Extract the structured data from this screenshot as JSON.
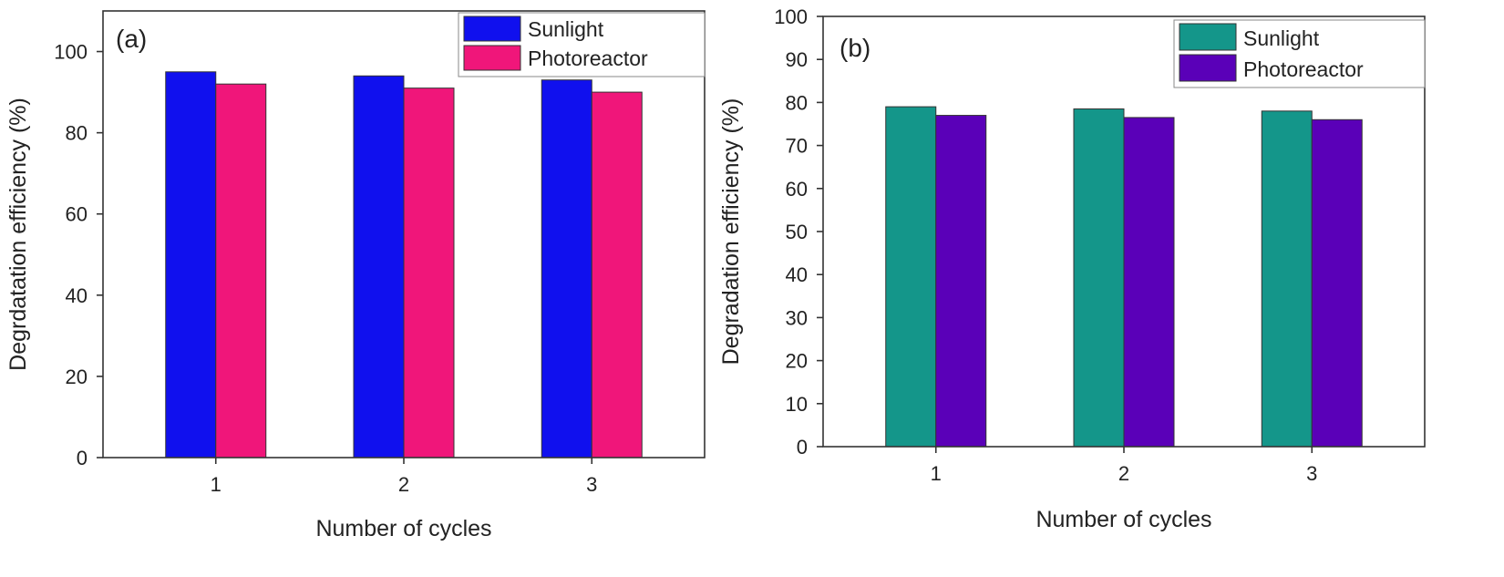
{
  "chart_data": [
    {
      "type": "bar",
      "panel_label": "(a)",
      "categories": [
        "1",
        "2",
        "3"
      ],
      "series": [
        {
          "name": "Sunlight",
          "values": [
            95,
            94,
            93
          ],
          "color": "#1010ee"
        },
        {
          "name": "Photoreactor",
          "values": [
            92,
            91,
            90
          ],
          "color": "#f0167a"
        }
      ],
      "xlabel": "Number of cycles",
      "ylabel": "Degrdatation efficiency (%)",
      "ylim": [
        0,
        110
      ],
      "yticks": [
        0,
        20,
        40,
        60,
        80,
        100
      ],
      "grid": false,
      "legend_position": "top-right"
    },
    {
      "type": "bar",
      "panel_label": "(b)",
      "categories": [
        "1",
        "2",
        "3"
      ],
      "series": [
        {
          "name": "Sunlight",
          "values": [
            79,
            78.5,
            78
          ],
          "color": "#14968a"
        },
        {
          "name": "Photoreactor",
          "values": [
            77,
            76.5,
            76
          ],
          "color": "#5a00b8"
        }
      ],
      "xlabel": "Number of cycles",
      "ylabel": "Degradation efficiency (%)",
      "ylim": [
        0,
        100
      ],
      "yticks": [
        0,
        10,
        20,
        30,
        40,
        50,
        60,
        70,
        80,
        90,
        100
      ],
      "grid": false,
      "legend_position": "top-right"
    }
  ]
}
